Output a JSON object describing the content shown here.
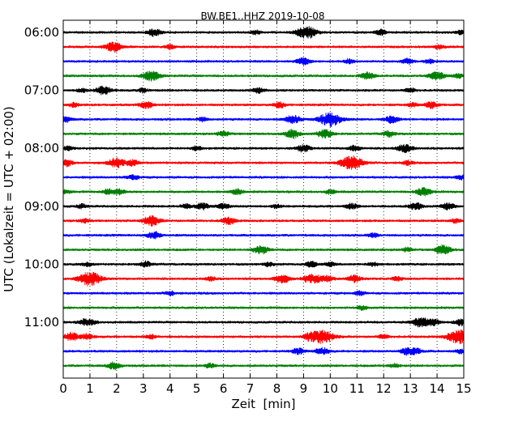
{
  "chart_data": {
    "type": "line",
    "title": "BW.BE1..HHZ 2019-10-08",
    "xlabel": "Zeit  [min]",
    "ylabel": "UTC (Lokalzeit = UTC + 02:00)",
    "xlim": [
      0,
      15
    ],
    "x_ticks": [
      "0",
      "1",
      "2",
      "3",
      "4",
      "5",
      "6",
      "7",
      "8",
      "9",
      "10",
      "11",
      "12",
      "13",
      "14",
      "15"
    ],
    "y_tick_labels": [
      "06:00",
      "07:00",
      "08:00",
      "09:00",
      "10:00",
      "11:00"
    ],
    "grid": "vertical dotted",
    "color_cycle": [
      "#000000",
      "#ff0000",
      "#0000ff",
      "#008000"
    ],
    "trace_start_times": [
      "06:00",
      "06:15",
      "06:30",
      "06:45",
      "07:00",
      "07:15",
      "07:30",
      "07:45",
      "08:00",
      "08:15",
      "08:30",
      "08:45",
      "09:00",
      "09:15",
      "09:30",
      "09:45",
      "10:00",
      "10:15",
      "10:30",
      "10:45",
      "11:00",
      "11:15",
      "11:30",
      "11:45"
    ],
    "events": [
      [
        [
          3.4,
          0.5
        ],
        [
          7.2,
          0.3
        ],
        [
          9.0,
          0.7
        ],
        [
          9.3,
          0.5
        ],
        [
          11.9,
          0.4
        ],
        [
          14.9,
          0.3
        ]
      ],
      [
        [
          1.9,
          0.7
        ],
        [
          4.0,
          0.3
        ],
        [
          14.1,
          0.3
        ]
      ],
      [
        [
          9.0,
          0.5
        ],
        [
          10.7,
          0.3
        ],
        [
          12.9,
          0.4
        ],
        [
          13.7,
          0.3
        ]
      ],
      [
        [
          3.3,
          0.7
        ],
        [
          11.4,
          0.5
        ],
        [
          14.0,
          0.6
        ],
        [
          14.8,
          0.3
        ]
      ],
      [
        [
          0.7,
          0.3
        ],
        [
          1.5,
          0.6
        ],
        [
          3.0,
          0.3
        ],
        [
          7.3,
          0.4
        ],
        [
          13.0,
          0.3
        ]
      ],
      [
        [
          0.4,
          0.3
        ],
        [
          3.1,
          0.5
        ],
        [
          8.1,
          0.4
        ],
        [
          13.1,
          0.3
        ],
        [
          13.8,
          0.5
        ]
      ],
      [
        [
          0.1,
          0.4
        ],
        [
          5.2,
          0.3
        ],
        [
          8.6,
          0.6
        ],
        [
          10.0,
          1.0
        ],
        [
          12.3,
          0.5
        ]
      ],
      [
        [
          6.0,
          0.4
        ],
        [
          8.6,
          0.6
        ],
        [
          9.8,
          0.6
        ],
        [
          12.2,
          0.4
        ]
      ],
      [
        [
          0.2,
          0.3
        ],
        [
          5.0,
          0.3
        ],
        [
          9.0,
          0.5
        ],
        [
          10.9,
          0.4
        ],
        [
          12.8,
          0.6
        ]
      ],
      [
        [
          0.1,
          0.5
        ],
        [
          2.0,
          0.7
        ],
        [
          2.6,
          0.4
        ],
        [
          10.8,
          1.0
        ],
        [
          12.9,
          0.3
        ]
      ],
      [
        [
          2.6,
          0.4
        ],
        [
          14.9,
          0.3
        ]
      ],
      [
        [
          0.1,
          0.3
        ],
        [
          1.7,
          0.4
        ],
        [
          2.1,
          0.4
        ],
        [
          6.5,
          0.4
        ],
        [
          10.0,
          0.3
        ],
        [
          13.5,
          0.6
        ]
      ],
      [
        [
          0.7,
          0.3
        ],
        [
          4.6,
          0.3
        ],
        [
          5.2,
          0.5
        ],
        [
          6.0,
          0.4
        ],
        [
          8.0,
          0.3
        ],
        [
          10.8,
          0.4
        ],
        [
          13.2,
          0.5
        ],
        [
          14.4,
          0.5
        ]
      ],
      [
        [
          0.8,
          0.3
        ],
        [
          3.3,
          0.7
        ],
        [
          6.2,
          0.5
        ],
        [
          14.7,
          0.3
        ]
      ],
      [
        [
          3.4,
          0.5
        ],
        [
          11.6,
          0.3
        ]
      ],
      [
        [
          7.4,
          0.6
        ],
        [
          12.9,
          0.3
        ],
        [
          14.1,
          0.3
        ],
        [
          14.3,
          0.5
        ]
      ],
      [
        [
          0.9,
          0.3
        ],
        [
          3.1,
          0.4
        ],
        [
          7.7,
          0.3
        ],
        [
          9.3,
          0.4
        ],
        [
          10.0,
          0.3
        ],
        [
          11.6,
          0.3
        ]
      ],
      [
        [
          1.0,
          1.0
        ],
        [
          5.5,
          0.3
        ],
        [
          8.2,
          0.6
        ],
        [
          9.2,
          0.5
        ],
        [
          9.5,
          0.4
        ],
        [
          9.9,
          0.4
        ],
        [
          10.9,
          0.5
        ],
        [
          12.5,
          0.3
        ]
      ],
      [
        [
          4.0,
          0.3
        ],
        [
          11.1,
          0.3
        ]
      ],
      [
        [
          11.2,
          0.3
        ]
      ],
      [
        [
          0.8,
          0.4
        ],
        [
          1.1,
          0.3
        ],
        [
          13.4,
          0.7
        ],
        [
          13.9,
          0.4
        ],
        [
          14.9,
          0.5
        ]
      ],
      [
        [
          0.3,
          0.6
        ],
        [
          0.9,
          0.4
        ],
        [
          3.3,
          0.3
        ],
        [
          9.2,
          0.4
        ],
        [
          9.7,
          1.0
        ],
        [
          12.0,
          0.3
        ],
        [
          14.8,
          1.0
        ]
      ],
      [
        [
          8.8,
          0.4
        ],
        [
          9.7,
          0.5
        ],
        [
          12.8,
          0.3
        ],
        [
          13.1,
          0.6
        ],
        [
          14.9,
          0.3
        ]
      ],
      [
        [
          1.9,
          0.5
        ],
        [
          5.5,
          0.3
        ],
        [
          12.4,
          0.3
        ]
      ]
    ]
  }
}
